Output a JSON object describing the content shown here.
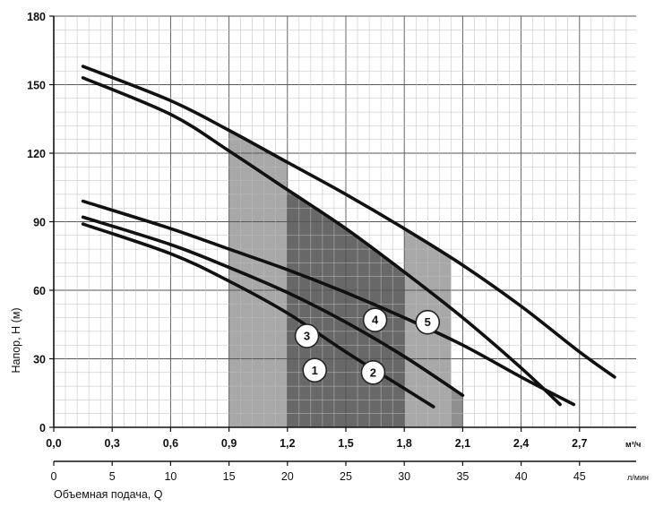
{
  "chart_data": {
    "type": "line",
    "ylabel": "Напор, Н (м)",
    "xlabel": "Объемная подача, Q",
    "x_unit_primary": "м³/ч",
    "x_unit_secondary": "л/мин",
    "xlim": [
      0,
      3.0
    ],
    "ylim": [
      0,
      180
    ],
    "x_ticks": [
      "0,0",
      "0,3",
      "0,6",
      "0,9",
      "1,2",
      "1,5",
      "1,8",
      "2,1",
      "2,4",
      "2,7"
    ],
    "x_ticks_secondary": [
      "0",
      "5",
      "10",
      "15",
      "20",
      "25",
      "30",
      "35",
      "40",
      "45"
    ],
    "y_ticks": [
      "0",
      "30",
      "60",
      "90",
      "120",
      "150",
      "180"
    ],
    "grid": true,
    "series": [
      {
        "name": "1",
        "x": [
          0.15,
          0.6,
          0.9,
          1.2,
          1.5,
          1.8,
          1.95
        ],
        "y": [
          89,
          76,
          64,
          50,
          33,
          17,
          9
        ]
      },
      {
        "name": "2",
        "x": [
          0.15,
          0.6,
          0.9,
          1.2,
          1.5,
          1.8,
          2.1
        ],
        "y": [
          92,
          80,
          70,
          59,
          46,
          31,
          14
        ]
      },
      {
        "name": "3",
        "x": [
          0.15,
          0.6,
          0.9,
          1.2,
          1.5,
          1.8,
          2.1,
          2.4,
          2.67
        ],
        "y": [
          99,
          87,
          78,
          69,
          59,
          48,
          36,
          22,
          10
        ]
      },
      {
        "name": "4",
        "x": [
          0.15,
          0.6,
          0.9,
          1.2,
          1.5,
          1.8,
          2.1,
          2.4,
          2.6
        ],
        "y": [
          153,
          137,
          121,
          104,
          87,
          68,
          48,
          26,
          10
        ]
      },
      {
        "name": "5",
        "x": [
          0.15,
          0.6,
          0.9,
          1.2,
          1.5,
          1.8,
          2.1,
          2.4,
          2.7,
          2.88
        ],
        "y": [
          158,
          143,
          130,
          116,
          102,
          87,
          71,
          53,
          33,
          22
        ]
      }
    ],
    "shaded_regions": [
      {
        "x_from": 0.9,
        "x_to": 1.5,
        "series": "1",
        "color": "#dcdcdc"
      },
      {
        "x_from": 1.5,
        "x_to": 1.8,
        "series": "2",
        "color": "#c4c4c4"
      },
      {
        "x_from": 1.8,
        "x_to": 2.1,
        "series": "2",
        "color": "#8f8f8f"
      },
      {
        "x_from": 0.9,
        "x_to": 1.8,
        "series": "4",
        "color": "#686868"
      },
      {
        "x_from": 0.9,
        "x_to": 1.2,
        "series": "5",
        "color": "#a8a8a8"
      },
      {
        "x_from": 1.8,
        "x_to": 2.04,
        "series": "5",
        "color": "#a8a8a8"
      }
    ],
    "labels": [
      {
        "text": "1",
        "x": 1.34,
        "y": 25
      },
      {
        "text": "2",
        "x": 1.64,
        "y": 24
      },
      {
        "text": "3",
        "x": 1.3,
        "y": 40
      },
      {
        "text": "4",
        "x": 1.65,
        "y": 47
      },
      {
        "text": "5",
        "x": 1.92,
        "y": 46
      }
    ],
    "colors": {
      "curve": "#111111",
      "grid": "#555555",
      "label_fill": "#ffffff"
    }
  }
}
